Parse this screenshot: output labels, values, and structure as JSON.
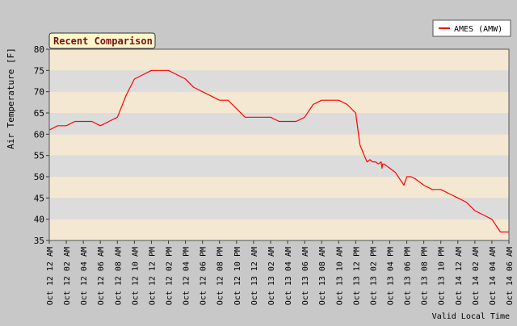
{
  "colors": {
    "background": "#c8c8c8",
    "band_light": "#f5e8d2",
    "band_dark": "#dcdcdc",
    "series": "#ff0000",
    "title_fill": "#fff7cc",
    "title_text": "#7a1010",
    "legend_fill": "#ffffff"
  },
  "chart_data": {
    "type": "line",
    "title": "Recent Comparison",
    "xlabel": "Valid Local Time",
    "ylabel": "Air Temperature [F]",
    "ylim": [
      35,
      80
    ],
    "yticks": [
      35,
      40,
      45,
      50,
      55,
      60,
      65,
      70,
      75,
      80
    ],
    "xlim": [
      "Oct 12 12 AM",
      "Oct 14 06 AM"
    ],
    "xtick_labels": [
      "Oct 12 12 AM",
      "Oct 12 02 AM",
      "Oct 12 04 AM",
      "Oct 12 06 AM",
      "Oct 12 08 AM",
      "Oct 12 10 AM",
      "Oct 12 12 PM",
      "Oct 12 02 PM",
      "Oct 12 04 PM",
      "Oct 12 06 PM",
      "Oct 12 08 PM",
      "Oct 12 10 PM",
      "Oct 13 12 AM",
      "Oct 13 02 AM",
      "Oct 13 04 AM",
      "Oct 13 06 AM",
      "Oct 13 08 AM",
      "Oct 13 10 AM",
      "Oct 13 12 PM",
      "Oct 13 02 PM",
      "Oct 13 04 PM",
      "Oct 13 06 PM",
      "Oct 13 08 PM",
      "Oct 13 10 PM",
      "Oct 14 12 AM",
      "Oct 14 02 AM",
      "Oct 14 04 AM",
      "Oct 14 06 AM"
    ],
    "grid": "alternating horizontal bands",
    "legend_position": "top-right",
    "series": [
      {
        "name": "AMES (AMW)",
        "color": "#ff0000",
        "x": [
          "Oct 12 12 AM",
          "Oct 12 01 AM",
          "Oct 12 02 AM",
          "Oct 12 03 AM",
          "Oct 12 04 AM",
          "Oct 12 05 AM",
          "Oct 12 06 AM",
          "Oct 12 07 AM",
          "Oct 12 08 AM",
          "Oct 12 09 AM",
          "Oct 12 10 AM",
          "Oct 12 11 AM",
          "Oct 12 12 PM",
          "Oct 12 01 PM",
          "Oct 12 02 PM",
          "Oct 12 03 PM",
          "Oct 12 04 PM",
          "Oct 12 05 PM",
          "Oct 12 06 PM",
          "Oct 12 07 PM",
          "Oct 12 08 PM",
          "Oct 12 09 PM",
          "Oct 12 10 PM",
          "Oct 12 11 PM",
          "Oct 13 12 AM",
          "Oct 13 01 AM",
          "Oct 13 02 AM",
          "Oct 13 03 AM",
          "Oct 13 04 AM",
          "Oct 13 05 AM",
          "Oct 13 06 AM",
          "Oct 13 07 AM",
          "Oct 13 08 AM",
          "Oct 13 09 AM",
          "Oct 13 10 AM",
          "Oct 13 11 AM",
          "Oct 13 12 PM",
          "Oct 13 12:30 PM",
          "Oct 13 01 PM",
          "Oct 13 01:20 PM",
          "Oct 13 01:40 PM",
          "Oct 13 02 PM",
          "Oct 13 02:20 PM",
          "Oct 13 02:40 PM",
          "Oct 13 03 PM",
          "Oct 13 03:05 PM",
          "Oct 13 03:10 PM",
          "Oct 13 03:20 PM",
          "Oct 13 03:40 PM",
          "Oct 13 04 PM",
          "Oct 13 04:20 PM",
          "Oct 13 04:40 PM",
          "Oct 13 05 PM",
          "Oct 13 05:20 PM",
          "Oct 13 05:40 PM",
          "Oct 13 06 PM",
          "Oct 13 06:15 PM",
          "Oct 13 06:30 PM",
          "Oct 13 07 PM",
          "Oct 13 08 PM",
          "Oct 13 09 PM",
          "Oct 13 10 PM",
          "Oct 13 11 PM",
          "Oct 14 12 AM",
          "Oct 14 01 AM",
          "Oct 14 02 AM",
          "Oct 14 03 AM",
          "Oct 14 04 AM",
          "Oct 14 05 AM",
          "Oct 14 06 AM"
        ],
        "values": [
          61,
          62,
          62,
          63,
          63,
          63,
          62,
          63,
          64,
          69,
          73,
          74,
          75,
          75,
          75,
          74,
          73,
          71,
          70,
          69,
          68,
          68,
          66,
          64,
          64,
          64,
          64,
          63,
          63,
          63,
          64,
          67,
          68,
          68,
          68,
          67,
          65,
          57.5,
          55,
          53.5,
          54,
          53.5,
          53.5,
          53,
          53.5,
          52,
          53,
          53,
          52.5,
          52,
          51.5,
          51,
          50,
          49,
          48,
          50,
          50,
          50,
          49.5,
          48,
          47,
          47,
          46,
          45,
          44,
          42,
          41,
          40,
          37,
          37
        ]
      }
    ]
  }
}
